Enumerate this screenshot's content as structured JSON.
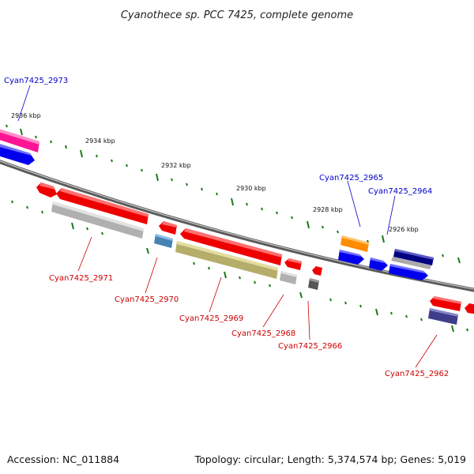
{
  "title": "Cyanothece sp. PCC 7425, complete genome",
  "accession": "Accession: NC_011884",
  "summary": "Topology: circular; Length: 5,374,574 bp; Genes: 5,019",
  "colors": {
    "forward_label": "#0000cc",
    "reverse_label": "#cc0000",
    "tick": "#1a7a1a",
    "backbone": "#808080"
  },
  "scale_labels": [
    "2936 kbp",
    "2934 kbp",
    "2932 kbp",
    "2930 kbp",
    "2928 kbp",
    "2926 kbp"
  ],
  "forward_genes": [
    {
      "name": "Cyan7425_2973"
    },
    {
      "name": "Cyan7425_2965"
    },
    {
      "name": "Cyan7425_2964"
    }
  ],
  "reverse_genes": [
    {
      "name": "Cyan7425_2971"
    },
    {
      "name": "Cyan7425_2970"
    },
    {
      "name": "Cyan7425_2969"
    },
    {
      "name": "Cyan7425_2968"
    },
    {
      "name": "Cyan7425_2966"
    },
    {
      "name": "Cyan7425_2962"
    }
  ]
}
